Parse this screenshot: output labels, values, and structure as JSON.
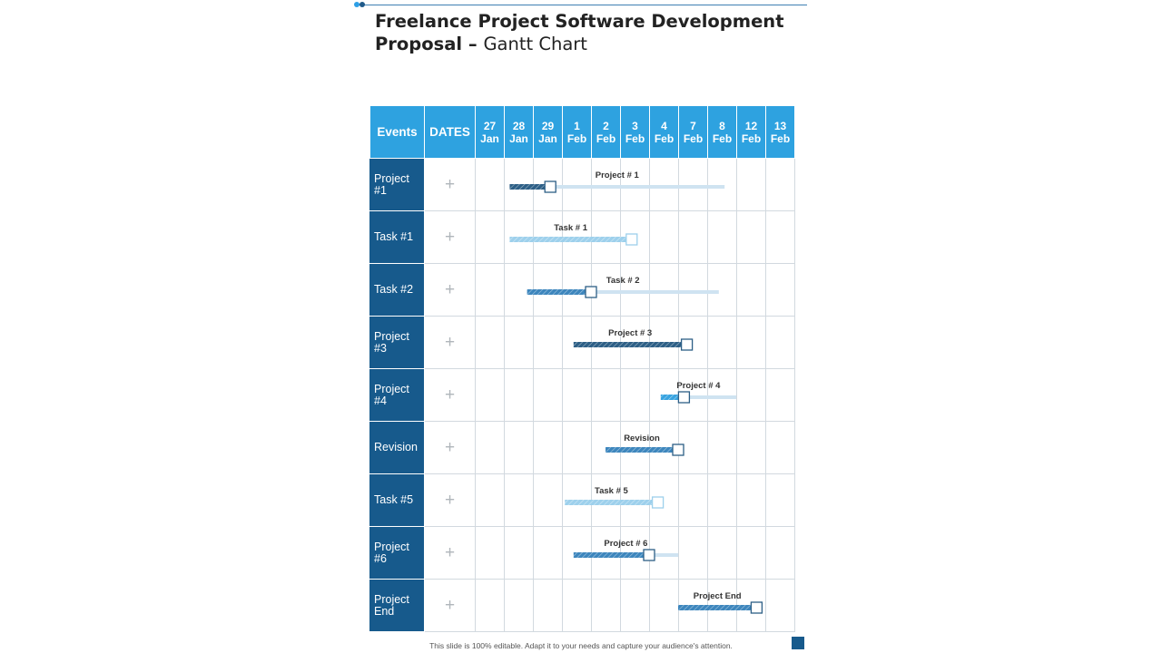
{
  "slide": {
    "title_line1": "Freelance Project Software Development",
    "title_line2_bold": "Proposal – ",
    "title_line2_rest": "Gantt Chart",
    "footer": "This slide is 100% editable. Adapt it to your needs and capture your audience's attention."
  },
  "table": {
    "headers": {
      "events": "Events",
      "dates": "DATES",
      "columns": [
        {
          "day": "27",
          "month": "Jan"
        },
        {
          "day": "28",
          "month": "Jan"
        },
        {
          "day": "29",
          "month": "Jan"
        },
        {
          "day": "1",
          "month": "Feb"
        },
        {
          "day": "2",
          "month": "Feb"
        },
        {
          "day": "3",
          "month": "Feb"
        },
        {
          "day": "4",
          "month": "Feb"
        },
        {
          "day": "7",
          "month": "Feb"
        },
        {
          "day": "8",
          "month": "Feb"
        },
        {
          "day": "12",
          "month": "Feb"
        },
        {
          "day": "13",
          "month": "Feb"
        }
      ]
    },
    "dates_symbol": "+",
    "rows": [
      {
        "line1": "Project",
        "line2": "#1"
      },
      {
        "line1": "Task #1",
        "line2": ""
      },
      {
        "line1": "Task #2",
        "line2": ""
      },
      {
        "line1": "Project",
        "line2": "#3"
      },
      {
        "line1": "Project",
        "line2": "#4"
      },
      {
        "line1": "Revision",
        "line2": ""
      },
      {
        "line1": "Task #5",
        "line2": ""
      },
      {
        "line1": "Project",
        "line2": "#6"
      },
      {
        "line1": "Project",
        "line2": "End"
      }
    ]
  },
  "chart_data": {
    "type": "gantt",
    "x_categories": [
      "27 Jan",
      "28 Jan",
      "29 Jan",
      "1 Feb",
      "2 Feb",
      "3 Feb",
      "4 Feb",
      "7 Feb",
      "8 Feb",
      "12 Feb",
      "13 Feb"
    ],
    "tasks": [
      {
        "label": "Project # 1",
        "row": 0,
        "start": 1.2,
        "progress": 2.6,
        "end": 8.6,
        "style": "dark"
      },
      {
        "label": "Task # 1",
        "row": 1,
        "start": 1.2,
        "progress": 5.4,
        "end": 5.4,
        "style": "light"
      },
      {
        "label": "Task # 2",
        "row": 2,
        "start": 1.8,
        "progress": 4.0,
        "end": 8.4,
        "style": "medium"
      },
      {
        "label": "Project # 3",
        "row": 3,
        "start": 3.4,
        "progress": 7.3,
        "end": 7.3,
        "style": "dark"
      },
      {
        "label": "Project # 4",
        "row": 4,
        "start": 6.4,
        "progress": 7.2,
        "end": 9.0,
        "style": "bright"
      },
      {
        "label": "Revision",
        "row": 5,
        "start": 4.5,
        "progress": 7.0,
        "end": 7.0,
        "style": "medium"
      },
      {
        "label": "Task # 5",
        "row": 6,
        "start": 3.1,
        "progress": 6.3,
        "end": 6.3,
        "style": "light"
      },
      {
        "label": "Project # 6",
        "row": 7,
        "start": 3.4,
        "progress": 6.0,
        "end": 7.0,
        "style": "medium"
      },
      {
        "label": "Project End",
        "row": 8,
        "start": 7.0,
        "progress": 9.7,
        "end": 9.7,
        "style": "medium"
      }
    ],
    "colors": {
      "header_bg": "#2ea2e0",
      "event_bg": "#175a8c",
      "dark": "#2d5f86",
      "medium": "#3d86bd",
      "bright": "#37a3e0",
      "light": "#9dd0ec",
      "remaining": "#cfe3f1"
    }
  }
}
